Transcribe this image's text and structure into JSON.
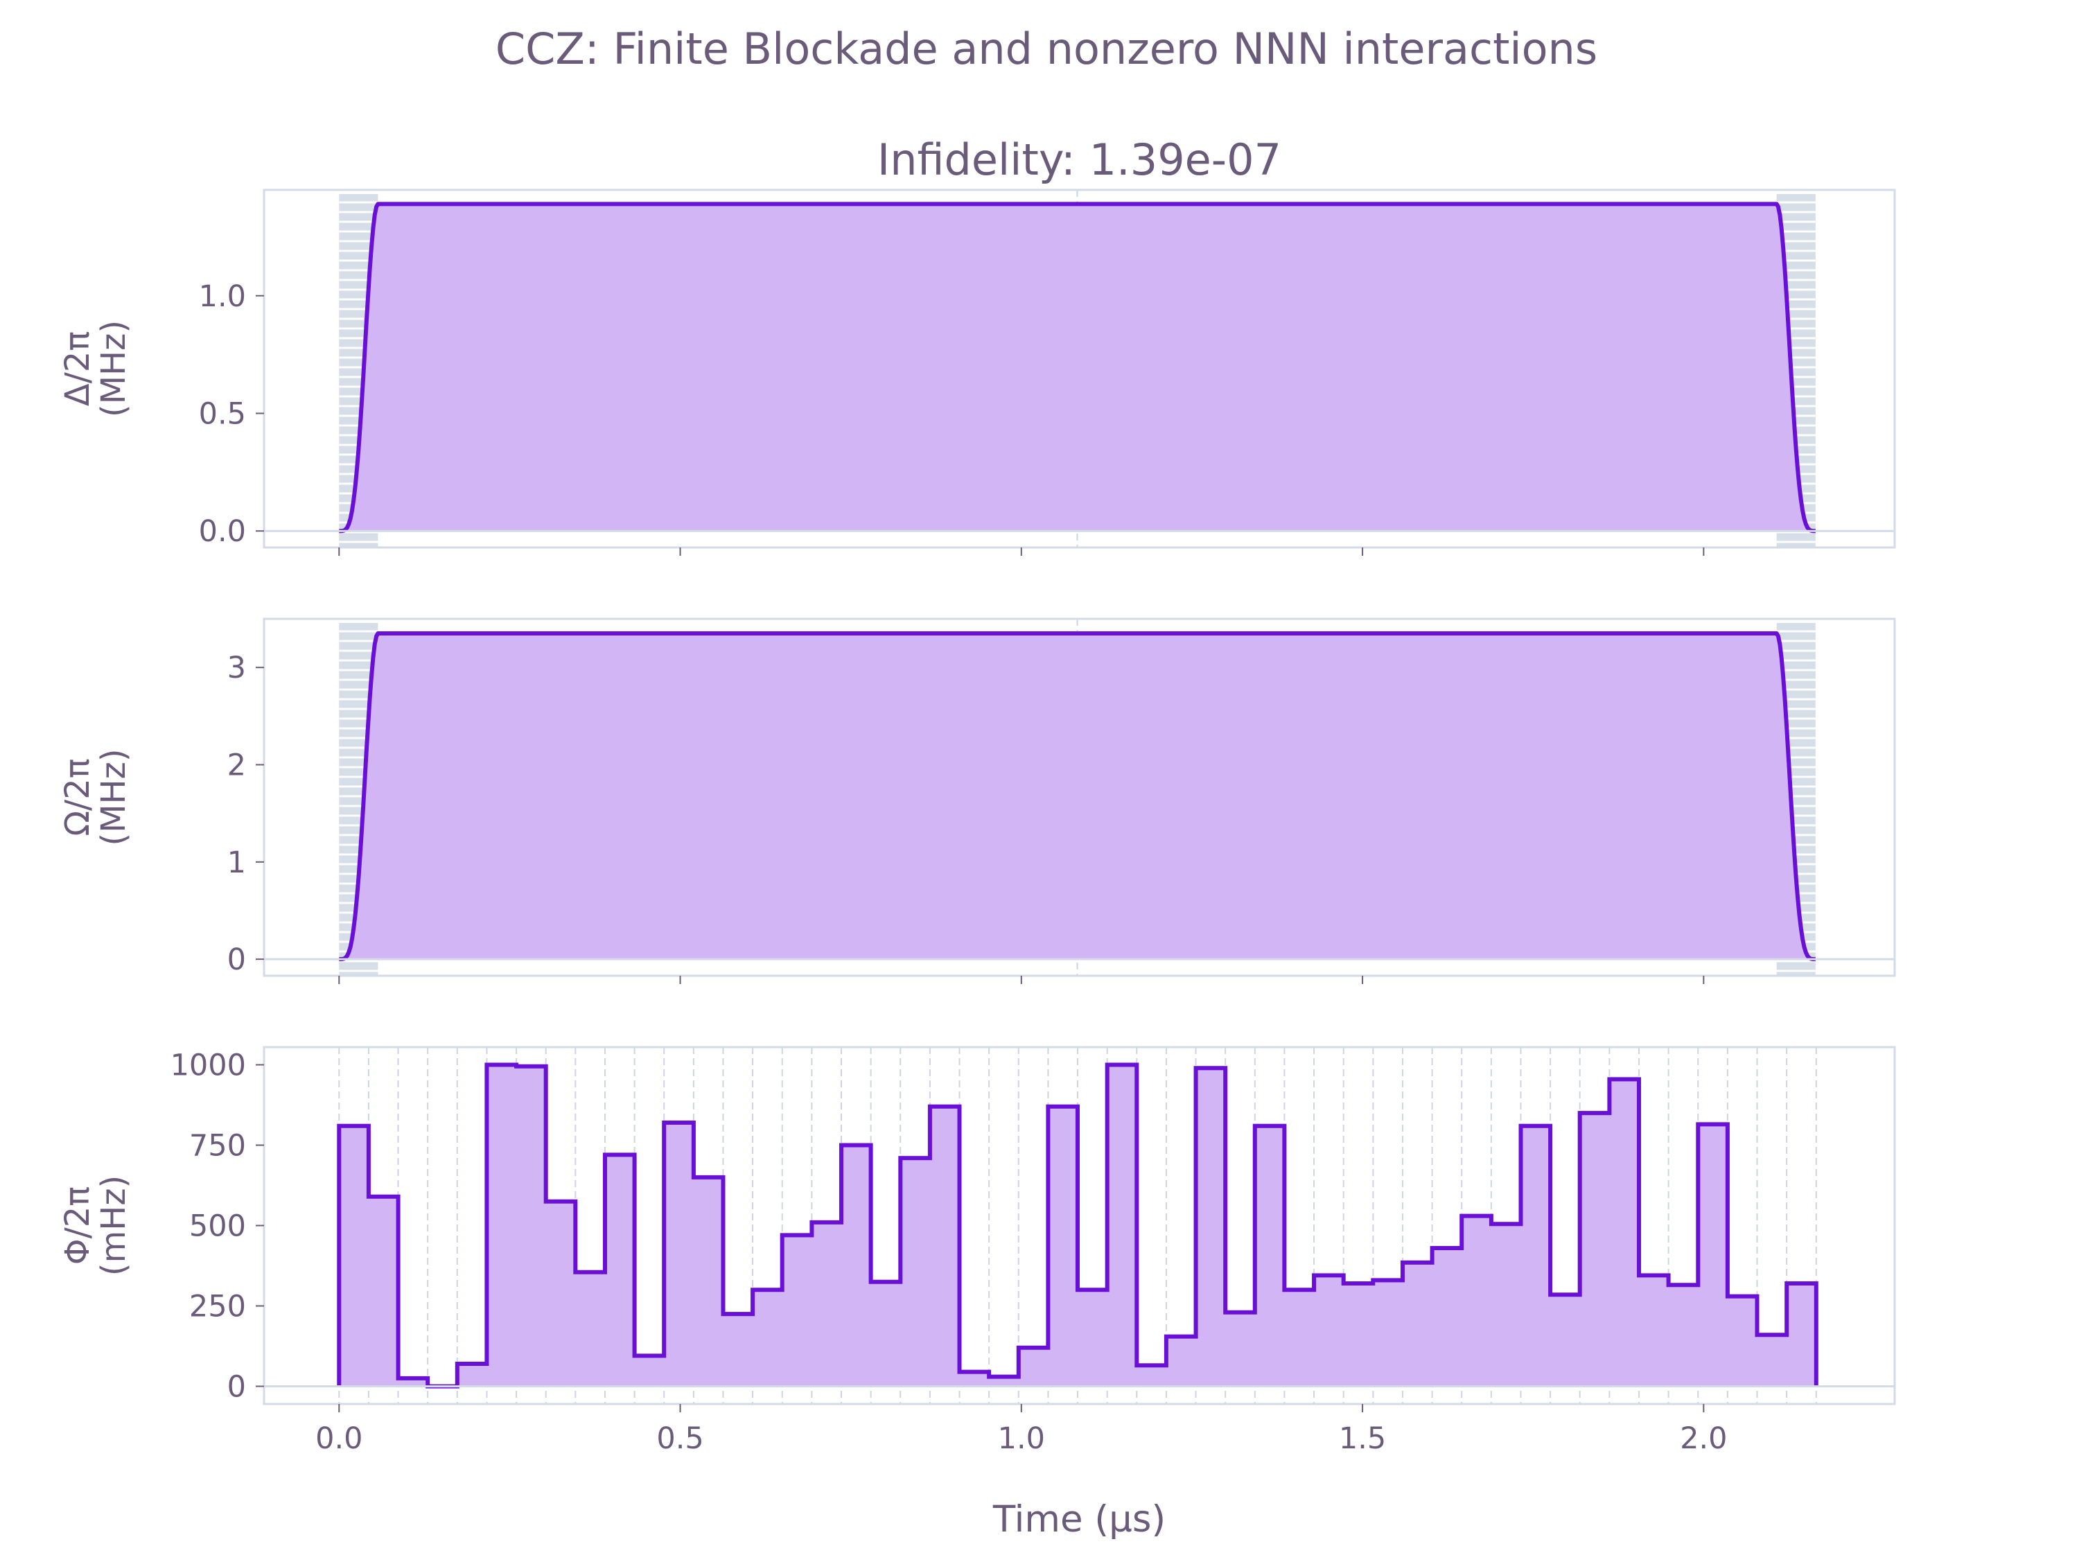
{
  "figure": {
    "suptitle": "CCZ: Finite Blockade and nonzero NNN interactions"
  },
  "colors": {
    "line": "#6a0fd8",
    "fill": "#d1b5f5",
    "text": "#6b5b7b",
    "frame": "#d3dbe6",
    "ramp_band": "#d6dee8",
    "grid_dash": "#c9d6e6"
  },
  "chart_data": [
    {
      "type": "area",
      "title": "Infidelity: 1.39e-07",
      "ylabel_line1": "Δ/2π",
      "ylabel_line2": "(MHz)",
      "xlim": [
        -0.11,
        2.28
      ],
      "ylim": [
        -0.07,
        1.45
      ],
      "yticks": [
        "0.0",
        "0.5",
        "1.0"
      ],
      "ytick_values": [
        0.0,
        0.5,
        1.0
      ],
      "duration": 2.164,
      "ramp_time": 0.057,
      "plateau": 1.39,
      "midline": 1.082,
      "xlabel": ""
    },
    {
      "type": "area",
      "title": "",
      "ylabel_line1": "Ω/2π",
      "ylabel_line2": "(MHz)",
      "xlim": [
        -0.11,
        2.28
      ],
      "ylim": [
        -0.17,
        3.5
      ],
      "yticks": [
        "0",
        "1",
        "2",
        "3"
      ],
      "ytick_values": [
        0,
        1,
        2,
        3
      ],
      "duration": 2.164,
      "ramp_time": 0.057,
      "plateau": 3.35,
      "midline": 1.082,
      "xlabel": ""
    },
    {
      "type": "step",
      "title": "",
      "ylabel_line1": "Φ/2π",
      "ylabel_line2": "(mHz)",
      "xlim": [
        -0.11,
        2.28
      ],
      "ylim": [
        -55,
        1055
      ],
      "yticks": [
        "0",
        "250",
        "500",
        "750",
        "1000"
      ],
      "ytick_values": [
        0,
        250,
        500,
        750,
        1000
      ],
      "xticks": [
        "0.0",
        "0.5",
        "1.0",
        "1.5",
        "2.0"
      ],
      "xtick_values": [
        0.0,
        0.5,
        1.0,
        1.5,
        2.0
      ],
      "xlabel": "Time (μs)",
      "segment_width": 0.0433,
      "values": [
        810,
        590,
        25,
        0,
        70,
        1000,
        995,
        575,
        355,
        720,
        95,
        820,
        650,
        225,
        300,
        470,
        510,
        750,
        325,
        710,
        870,
        45,
        30,
        120,
        870,
        300,
        1000,
        65,
        155,
        990,
        230,
        810,
        300,
        345,
        320,
        330,
        385,
        430,
        530,
        505,
        810,
        285,
        850,
        955,
        345,
        315,
        815,
        280,
        160,
        320
      ]
    }
  ]
}
